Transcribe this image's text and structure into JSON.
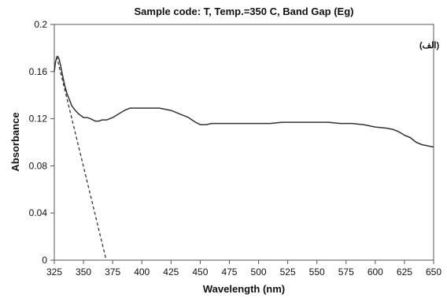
{
  "chart_data": {
    "type": "line",
    "title": "Sample code: T, Temp.=350 C, Band Gap (Eg)",
    "xlabel": "Wavelength (nm)",
    "ylabel": "Absorbance",
    "annotation": "(الف)",
    "xlim": [
      325,
      650
    ],
    "ylim": [
      0,
      0.2
    ],
    "x_ticks": [
      325,
      350,
      375,
      400,
      425,
      450,
      475,
      500,
      525,
      550,
      575,
      600,
      625,
      650
    ],
    "x_tick_labels": [
      "325",
      "350",
      "375",
      "400",
      "425",
      "450",
      "475",
      "500",
      "525",
      "550",
      "575",
      "600",
      "625",
      "650"
    ],
    "y_ticks": [
      0,
      0.04,
      0.08,
      0.12,
      0.16,
      0.2
    ],
    "y_tick_labels": [
      "0",
      "0.04",
      "0.08",
      "0.12",
      "0.16",
      "0.2"
    ],
    "grid": false,
    "series": [
      {
        "style": "solid",
        "color": "#333333",
        "x": [
          325,
          326,
          327,
          328,
          329,
          330,
          332,
          334,
          336,
          338,
          340,
          343,
          346,
          350,
          353,
          356,
          360,
          363,
          366,
          370,
          375,
          380,
          385,
          390,
          395,
          400,
          405,
          410,
          415,
          420,
          425,
          430,
          435,
          440,
          443,
          446,
          448,
          450,
          455,
          460,
          470,
          480,
          490,
          500,
          510,
          520,
          530,
          540,
          550,
          555,
          560,
          570,
          580,
          590,
          600,
          610,
          615,
          620,
          625,
          630,
          635,
          640,
          645,
          650
        ],
        "y": [
          0.16,
          0.168,
          0.172,
          0.173,
          0.171,
          0.167,
          0.157,
          0.148,
          0.141,
          0.136,
          0.131,
          0.127,
          0.124,
          0.121,
          0.121,
          0.12,
          0.118,
          0.118,
          0.119,
          0.119,
          0.121,
          0.124,
          0.127,
          0.129,
          0.129,
          0.129,
          0.129,
          0.129,
          0.129,
          0.128,
          0.127,
          0.125,
          0.123,
          0.121,
          0.119,
          0.117,
          0.116,
          0.115,
          0.115,
          0.116,
          0.116,
          0.116,
          0.116,
          0.116,
          0.116,
          0.117,
          0.117,
          0.117,
          0.117,
          0.117,
          0.117,
          0.116,
          0.116,
          0.115,
          0.113,
          0.112,
          0.111,
          0.109,
          0.106,
          0.104,
          0.1,
          0.098,
          0.097,
          0.096
        ]
      },
      {
        "style": "dashed",
        "color": "#333333",
        "x": [
          327,
          369.5
        ],
        "y": [
          0.173,
          0
        ]
      }
    ],
    "colors": {
      "axis": "#555555",
      "line": "#333333",
      "text": "#111111"
    }
  }
}
